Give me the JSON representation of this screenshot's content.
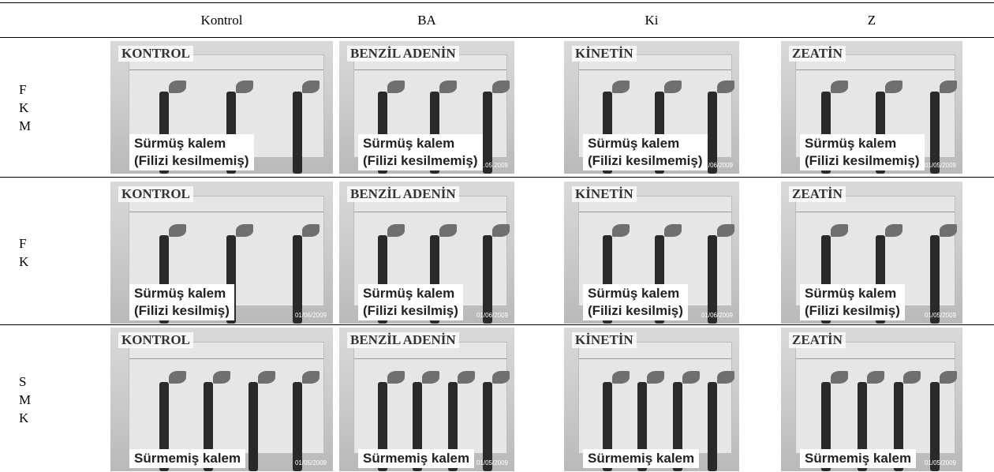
{
  "table": {
    "header": [
      "Kontrol",
      "BA",
      "Ki",
      "Z"
    ],
    "rows": [
      {
        "label": [
          "F",
          "K",
          "M"
        ],
        "cells": [
          {
            "sign": "KONTROL",
            "caption": [
              "Sürmüş kalem",
              "(Filizi kesilmemiş)"
            ]
          },
          {
            "sign": "BENZİL ADENİN",
            "caption": [
              "Sürmüş kalem",
              "(Filizi kesilmemiş)"
            ],
            "date": "31.05.2009"
          },
          {
            "sign": "KİNETİN",
            "caption": [
              "Sürmüş kalem",
              "(Filizi kesilmemiş)"
            ],
            "date": "01/06/2009"
          },
          {
            "sign": "ZEATİN",
            "caption": [
              "Sürmüş kalem",
              "(Filizi kesilmemiş)"
            ],
            "date": "01/05/2009"
          }
        ]
      },
      {
        "label": [
          "F",
          "K"
        ],
        "cells": [
          {
            "sign": "KONTROL",
            "caption": [
              "Sürmüş kalem",
              "(Filizi kesilmiş)"
            ],
            "date": "01/06/2009"
          },
          {
            "sign": "BENZİL ADENİN",
            "caption": [
              "Sürmüş kalem",
              "(Filizi kesilmiş)"
            ],
            "date": "01/06/2009"
          },
          {
            "sign": "KİNETİN",
            "caption": [
              "Sürmüş kalem",
              "(Filizi kesilmiş)"
            ],
            "date": "01/06/2009"
          },
          {
            "sign": "ZEATİN",
            "caption": [
              "Sürmüş kalem",
              "(Filizi kesilmiş)"
            ],
            "date": "01/05/2009"
          }
        ]
      },
      {
        "label": [
          "S",
          "M",
          "K"
        ],
        "cells": [
          {
            "sign": "KONTROL",
            "caption": [
              "Sürmemiş kalem"
            ],
            "date": "01/05/2009"
          },
          {
            "sign": "BENZİL ADENİN",
            "caption": [
              "Sürmemiş kalem"
            ],
            "date": "01/05/2009"
          },
          {
            "sign": "KİNETİN",
            "caption": [
              "Sürmemiş kalem"
            ]
          },
          {
            "sign": "ZEATİN",
            "caption": [
              "Sürmemiş kalem"
            ],
            "date": "01/05/2009"
          }
        ]
      }
    ]
  }
}
